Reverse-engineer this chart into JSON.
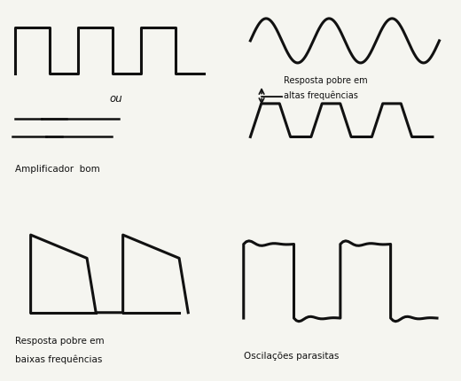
{
  "bg_color": "#f5f5f0",
  "line_color": "#111111",
  "lw": 2.2,
  "title_fontsize": 8,
  "label_fontsize": 7.5,
  "labels": {
    "top_left": "Amplificador  bom",
    "top_right_line1": "Resposta pobre em",
    "top_right_line2": "altas frequências",
    "bot_left_line1": "Resposta pobre em",
    "bot_left_line2": "baixas frequências",
    "bot_right": "Oscilações parasitas"
  }
}
